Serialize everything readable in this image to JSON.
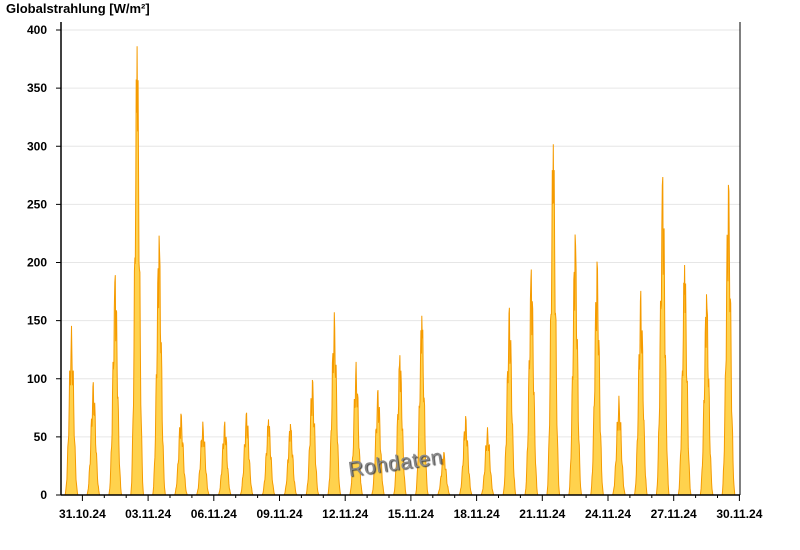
{
  "chart_data": {
    "type": "area",
    "ylabel": "Globalstrahlung [W/m²]",
    "ylim": [
      0,
      400
    ],
    "yticks": [
      0,
      50,
      100,
      150,
      200,
      250,
      300,
      350,
      400
    ],
    "xrange": [
      "30.10.24",
      "30.11.24"
    ],
    "xtick_labels": [
      "31.10.24",
      "03.11.24",
      "06.11.24",
      "09.11.24",
      "12.11.24",
      "15.11.24",
      "18.11.24",
      "21.11.24",
      "24.11.24",
      "27.11.24",
      "30.11.24"
    ],
    "grid": true,
    "watermark": "Rohdaten",
    "colors": {
      "fill": "#ffd24d",
      "line": "#f59b00",
      "grid": "#e6e6e6"
    },
    "series": [
      {
        "dates": [
          "30.10.24",
          "31.10.24",
          "01.11.24",
          "02.11.24",
          "03.11.24",
          "04.11.24",
          "05.11.24",
          "06.11.24",
          "07.11.24",
          "08.11.24",
          "09.11.24",
          "10.11.24",
          "11.11.24",
          "12.11.24",
          "13.11.24",
          "14.11.24",
          "15.11.24",
          "16.11.24",
          "17.11.24",
          "18.11.24",
          "19.11.24",
          "20.11.24",
          "21.11.24",
          "22.11.24",
          "23.11.24",
          "24.11.24",
          "25.11.24",
          "26.11.24",
          "27.11.24",
          "28.11.24",
          "29.11.24"
        ],
        "daily_peak": [
          150,
          100,
          195,
          398,
          230,
          72,
          65,
          65,
          73,
          67,
          63,
          102,
          162,
          118,
          93,
          124,
          159,
          38,
          70,
          60,
          166,
          200,
          311,
          231,
          207,
          88,
          181,
          282,
          204,
          178,
          275
        ]
      }
    ]
  }
}
